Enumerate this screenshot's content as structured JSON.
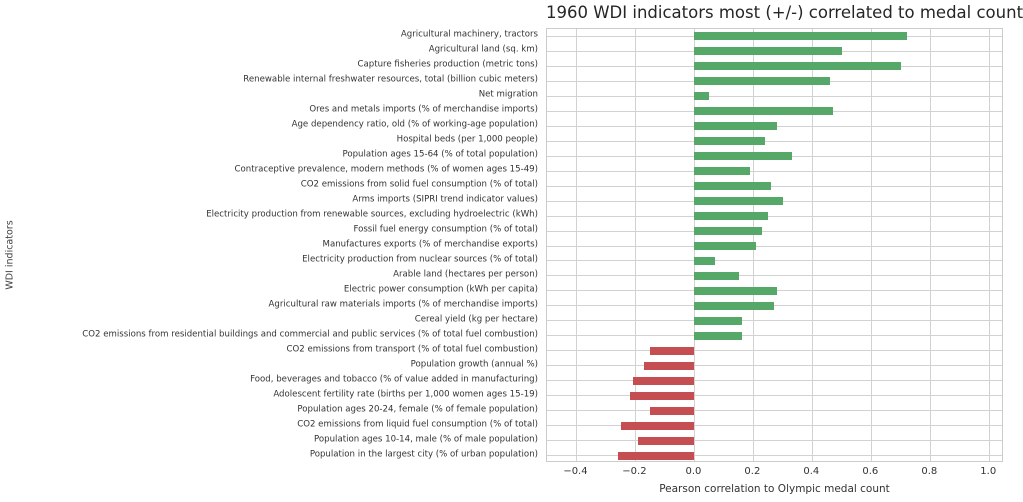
{
  "chart_data": {
    "type": "bar",
    "orientation": "horizontal",
    "title": "1960 WDI indicators most (+/-) correlated to medal count",
    "xlabel": "Pearson correlation to Olympic medal count",
    "ylabel": "WDI indicators",
    "xlim": [
      -0.5,
      1.05
    ],
    "xticks": [
      -0.4,
      -0.2,
      0.0,
      0.2,
      0.4,
      0.6,
      0.8,
      1.0
    ],
    "xtick_labels": [
      "−0.4",
      "−0.2",
      "0.0",
      "0.2",
      "0.4",
      "0.6",
      "0.8",
      "1.0"
    ],
    "grid": true,
    "legend": "none",
    "positive_color": "#55a868",
    "negative_color": "#c44e52",
    "categories": [
      "Agricultural machinery, tractors",
      "Agricultural land (sq. km)",
      "Capture fisheries production (metric tons)",
      "Renewable internal freshwater resources, total (billion cubic meters)",
      "Net migration",
      "Ores and metals imports (% of merchandise imports)",
      "Age dependency ratio, old (% of working-age population)",
      "Hospital beds (per 1,000 people)",
      "Population ages 15-64 (% of total population)",
      "Contraceptive prevalence, modern methods (% of women ages 15-49)",
      "CO2 emissions from solid fuel consumption (% of total)",
      "Arms imports (SIPRI trend indicator values)",
      "Electricity production from renewable sources, excluding hydroelectric (kWh)",
      "Fossil fuel energy consumption (% of total)",
      "Manufactures exports (% of merchandise exports)",
      "Electricity production from nuclear sources (% of total)",
      "Arable land (hectares per person)",
      "Electric power consumption (kWh per capita)",
      "Agricultural raw materials imports (% of merchandise imports)",
      "Cereal yield (kg per hectare)",
      "CO2 emissions from residential buildings and commercial and public services (% of total fuel combustion)",
      "CO2 emissions from transport (% of total fuel combustion)",
      "Population growth (annual %)",
      "Food, beverages and tobacco (% of value added in manufacturing)",
      "Adolescent fertility rate (births per 1,000 women ages 15-19)",
      "Population ages 20-24, female (% of female population)",
      "CO2 emissions from liquid fuel consumption (% of total)",
      "Population ages 10-14, male (% of male population)",
      "Population in the largest city (% of urban population)"
    ],
    "values": [
      0.72,
      0.5,
      0.7,
      0.46,
      0.05,
      0.47,
      0.28,
      0.24,
      0.33,
      0.19,
      0.26,
      0.3,
      0.25,
      0.23,
      0.21,
      0.07,
      0.15,
      0.28,
      0.27,
      0.16,
      0.16,
      -0.15,
      -0.17,
      -0.21,
      -0.22,
      -0.15,
      -0.25,
      -0.19,
      -0.26
    ]
  }
}
